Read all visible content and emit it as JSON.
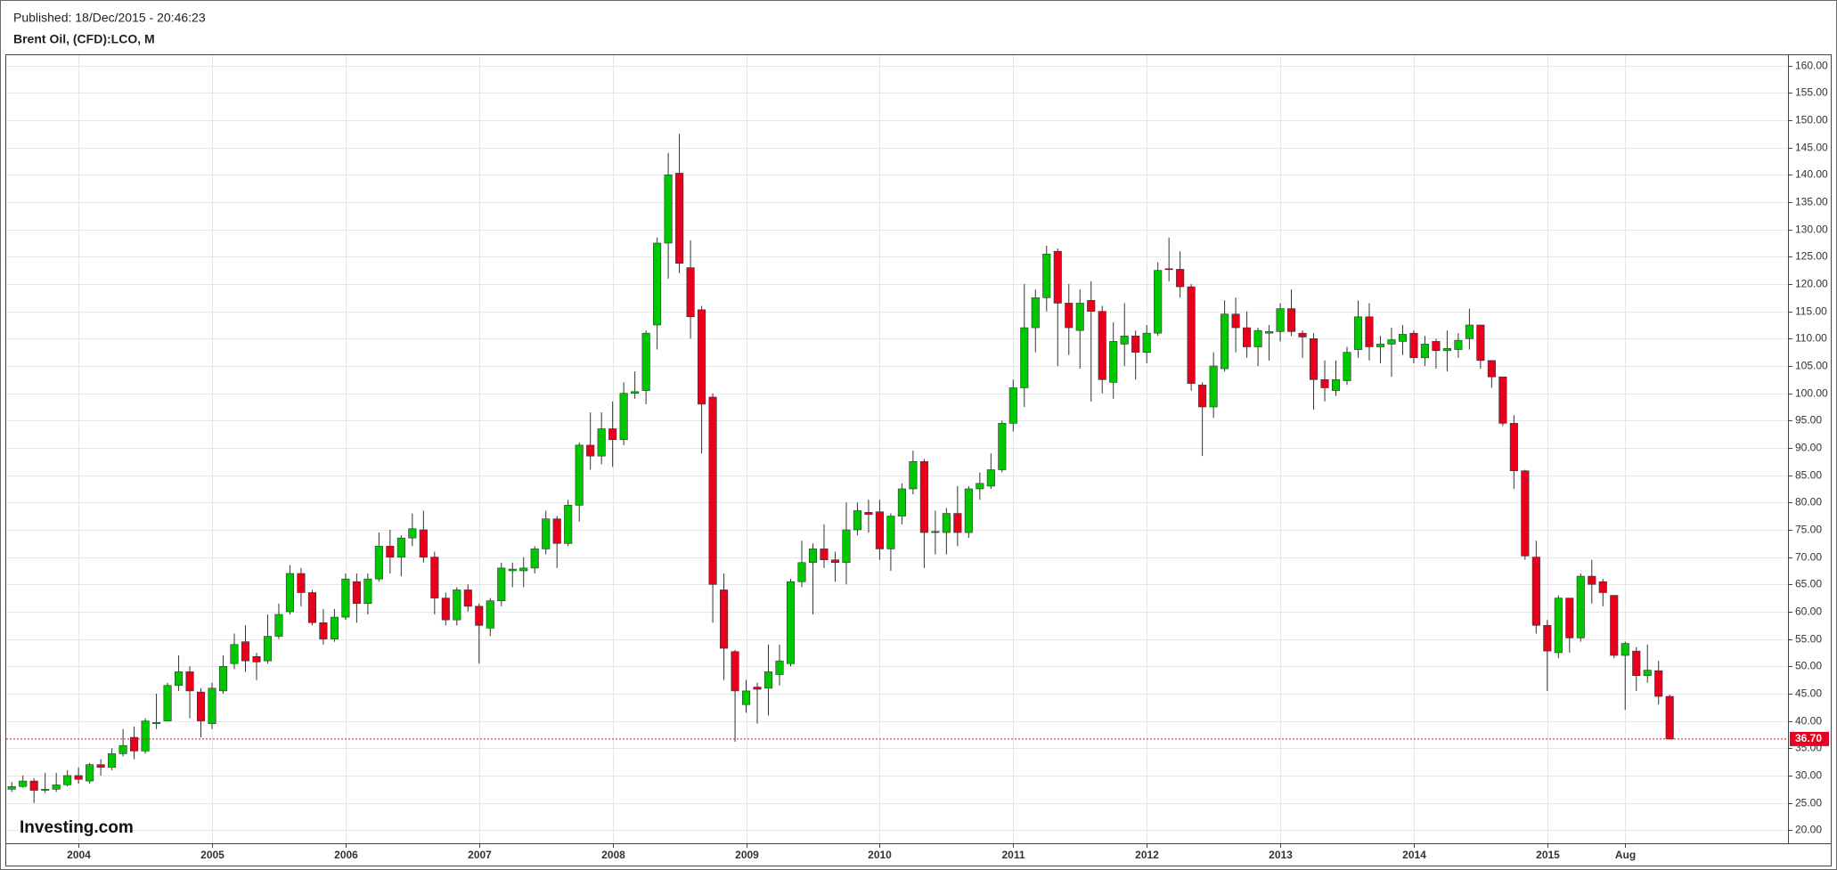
{
  "chart_data": {
    "type": "candlestick",
    "published": "Published: 18/Dec/2015 - 20:46:23",
    "title": "Brent Oil, (CFD):LCO, M",
    "logo": "Investing.com",
    "up_color": "#00c800",
    "down_color": "#e8001c",
    "ylim": [
      17.6,
      161.9
    ],
    "yticks": [
      {
        "value": 20,
        "label": "20.00"
      },
      {
        "value": 25,
        "label": "25.00"
      },
      {
        "value": 30,
        "label": "30.00"
      },
      {
        "value": 35,
        "label": "35.00"
      },
      {
        "value": 40,
        "label": "40.00"
      },
      {
        "value": 45,
        "label": "45.00"
      },
      {
        "value": 50,
        "label": "50.00"
      },
      {
        "value": 55,
        "label": "55.00"
      },
      {
        "value": 60,
        "label": "60.00"
      },
      {
        "value": 65,
        "label": "65.00"
      },
      {
        "value": 70,
        "label": "70.00"
      },
      {
        "value": 75,
        "label": "75.00"
      },
      {
        "value": 80,
        "label": "80.00"
      },
      {
        "value": 85,
        "label": "85.00"
      },
      {
        "value": 90,
        "label": "90.00"
      },
      {
        "value": 95,
        "label": "95.00"
      },
      {
        "value": 100,
        "label": "100.00"
      },
      {
        "value": 105,
        "label": "105.00"
      },
      {
        "value": 110,
        "label": "110.00"
      },
      {
        "value": 115,
        "label": "115.00"
      },
      {
        "value": 120,
        "label": "120.00"
      },
      {
        "value": 125,
        "label": "125.00"
      },
      {
        "value": 130,
        "label": "130.00"
      },
      {
        "value": 135,
        "label": "135.00"
      },
      {
        "value": 140,
        "label": "140.00"
      },
      {
        "value": 145,
        "label": "145.00"
      },
      {
        "value": 150,
        "label": "150.00"
      },
      {
        "value": 155,
        "label": "155.00"
      },
      {
        "value": 160,
        "label": "160.00"
      }
    ],
    "grid": true,
    "last_price": {
      "value": 36.7,
      "label": "36.70",
      "color": "#e8001c"
    },
    "categories": [
      null,
      null,
      null,
      null,
      null,
      null,
      "2004",
      null,
      null,
      null,
      null,
      null,
      null,
      null,
      null,
      null,
      null,
      null,
      "2005",
      null,
      null,
      null,
      null,
      null,
      null,
      null,
      null,
      null,
      null,
      null,
      "2006",
      null,
      null,
      null,
      null,
      null,
      null,
      null,
      null,
      null,
      null,
      null,
      "2007",
      null,
      null,
      null,
      null,
      null,
      null,
      null,
      null,
      null,
      null,
      null,
      "2008",
      null,
      null,
      null,
      null,
      null,
      null,
      null,
      null,
      null,
      null,
      null,
      "2009",
      null,
      null,
      null,
      null,
      null,
      null,
      null,
      null,
      null,
      null,
      null,
      "2010",
      null,
      null,
      null,
      null,
      null,
      null,
      null,
      null,
      null,
      null,
      null,
      "2011",
      null,
      null,
      null,
      null,
      null,
      null,
      null,
      null,
      null,
      null,
      null,
      "2012",
      null,
      null,
      null,
      null,
      null,
      null,
      null,
      null,
      null,
      null,
      null,
      "2013",
      null,
      null,
      null,
      null,
      null,
      null,
      null,
      null,
      null,
      null,
      null,
      "2014",
      null,
      null,
      null,
      null,
      null,
      null,
      null,
      null,
      null,
      null,
      null,
      "2015",
      null,
      null,
      null,
      null,
      null,
      null,
      "Aug",
      null,
      null,
      null,
      null
    ],
    "open": [
      27.5,
      28.0,
      29.0,
      27.3,
      27.5,
      28.3,
      30.0,
      29.0,
      32.0,
      31.5,
      34.0,
      37.0,
      34.5,
      39.5,
      40.0,
      46.5,
      49.0,
      45.3,
      39.5,
      45.5,
      50.5,
      54.5,
      51.8,
      51.0,
      55.5,
      60.0,
      67.0,
      63.5,
      58.0,
      55.0,
      59.0,
      65.5,
      61.5,
      66.0,
      72.0,
      70.0,
      73.5,
      75.0,
      70.0,
      62.5,
      58.5,
      64.0,
      61.0,
      57.0,
      62.0,
      67.5,
      67.5,
      68.0,
      71.5,
      77.0,
      72.5,
      79.5,
      90.5,
      88.5,
      93.5,
      91.5,
      100.0,
      100.5,
      112.5,
      127.5,
      140.3,
      123.0,
      115.3,
      99.3,
      64.0,
      52.7,
      43.0,
      46.2,
      46.0,
      48.5,
      50.5,
      65.5,
      69.0,
      71.5,
      69.5,
      69.0,
      75.0,
      78.2,
      78.3,
      71.5,
      77.5,
      82.5,
      87.5,
      74.7,
      74.5,
      78.0,
      74.5,
      82.5,
      83.0,
      86.0,
      94.5,
      101.0,
      112.0,
      117.5,
      126.0,
      116.5,
      111.5,
      117.0,
      115.0,
      102.0,
      109.0,
      110.5,
      107.5,
      111.0,
      122.8,
      122.7,
      119.5,
      101.5,
      97.5,
      104.5,
      114.5,
      112.0,
      108.5,
      111.0,
      111.3,
      115.5,
      111.0,
      110.0,
      102.5,
      100.5,
      102.3,
      108.0,
      114.0,
      108.5,
      109.0,
      109.5,
      111.0,
      106.5,
      109.5,
      107.8,
      108.0,
      110.0,
      112.5,
      106.0,
      103.0,
      94.5,
      85.8,
      70.0,
      57.5,
      52.5,
      62.5,
      55.2,
      66.5,
      65.5,
      63.0,
      52.0,
      52.8,
      48.3,
      49.2,
      44.5
    ],
    "high": [
      28.8,
      30.0,
      29.5,
      30.5,
      30.5,
      31.0,
      31.5,
      32.3,
      33.0,
      35.0,
      38.5,
      39.0,
      40.5,
      45.0,
      47.0,
      52.0,
      50.0,
      46.0,
      47.0,
      52.0,
      56.0,
      57.5,
      52.5,
      59.5,
      61.5,
      68.5,
      68.0,
      64.0,
      60.5,
      60.5,
      67.0,
      67.0,
      67.0,
      74.5,
      75.0,
      74.0,
      78.0,
      78.5,
      71.0,
      63.5,
      64.5,
      65.0,
      61.5,
      62.5,
      69.0,
      69.0,
      70.0,
      72.0,
      78.5,
      77.5,
      80.5,
      91.0,
      96.5,
      96.5,
      98.5,
      102.0,
      104.0,
      111.5,
      128.5,
      144.0,
      147.5,
      128.0,
      116.0,
      100.0,
      67.0,
      53.0,
      47.5,
      47.0,
      54.0,
      54.0,
      66.0,
      73.0,
      72.5,
      76.0,
      71.0,
      80.0,
      80.0,
      80.5,
      80.5,
      78.0,
      83.5,
      89.5,
      88.0,
      78.5,
      79.0,
      83.0,
      83.0,
      85.5,
      89.0,
      95.0,
      102.5,
      120.0,
      119.0,
      127.0,
      126.5,
      120.0,
      119.0,
      120.5,
      116.0,
      113.0,
      116.5,
      111.5,
      112.5,
      124.0,
      128.5,
      126.0,
      120.0,
      102.0,
      107.5,
      117.0,
      117.5,
      115.0,
      112.0,
      112.5,
      116.5,
      119.0,
      111.5,
      111.0,
      106.0,
      106.0,
      108.5,
      117.0,
      116.5,
      110.5,
      112.0,
      112.5,
      111.5,
      110.5,
      110.0,
      111.5,
      111.0,
      115.5,
      112.5,
      106.0,
      103.0,
      96.0,
      86.0,
      73.0,
      58.5,
      63.0,
      62.5,
      67.0,
      69.5,
      66.0,
      63.0,
      54.5,
      53.5,
      54.0,
      51.0,
      44.8
    ],
    "low": [
      27.0,
      27.8,
      25.0,
      26.8,
      27.0,
      28.0,
      28.5,
      28.5,
      30.0,
      31.0,
      33.5,
      33.0,
      34.0,
      38.5,
      40.0,
      45.5,
      40.5,
      37.0,
      38.5,
      45.0,
      49.5,
      49.0,
      47.5,
      50.5,
      55.0,
      59.5,
      61.0,
      57.5,
      54.0,
      54.5,
      58.5,
      58.0,
      59.5,
      65.5,
      67.0,
      66.5,
      72.0,
      69.0,
      59.5,
      57.5,
      57.5,
      60.0,
      50.5,
      55.5,
      61.0,
      64.5,
      64.5,
      67.0,
      70.5,
      68.0,
      72.0,
      76.5,
      86.0,
      87.0,
      86.5,
      90.5,
      99.0,
      98.0,
      108.0,
      121.0,
      122.0,
      110.0,
      89.0,
      58.0,
      47.5,
      36.2,
      41.5,
      39.5,
      41.0,
      46.5,
      50.0,
      64.5,
      59.5,
      68.0,
      65.5,
      65.0,
      74.0,
      74.5,
      69.5,
      67.5,
      76.0,
      81.5,
      68.0,
      70.5,
      70.5,
      72.0,
      73.5,
      80.5,
      82.5,
      85.5,
      93.0,
      97.5,
      107.5,
      115.0,
      105.0,
      107.0,
      104.5,
      98.5,
      100.0,
      99.0,
      105.0,
      102.5,
      105.5,
      110.5,
      120.5,
      117.5,
      100.5,
      88.5,
      95.5,
      104.0,
      107.5,
      106.5,
      105.0,
      106.0,
      109.5,
      110.5,
      106.5,
      97.0,
      98.5,
      99.5,
      101.5,
      106.5,
      106.0,
      105.5,
      103.0,
      107.0,
      105.5,
      105.0,
      104.5,
      104.0,
      106.5,
      108.0,
      104.5,
      101.0,
      94.0,
      82.5,
      69.5,
      56.0,
      45.5,
      51.5,
      52.5,
      54.5,
      61.5,
      61.0,
      51.5,
      42.0,
      45.5,
      47.0,
      43.0,
      36.6
    ],
    "close": [
      28.0,
      29.0,
      27.3,
      27.5,
      28.3,
      30.0,
      29.3,
      32.0,
      31.5,
      34.0,
      35.5,
      34.5,
      40.0,
      39.7,
      46.5,
      49.0,
      45.5,
      40.0,
      46.0,
      50.0,
      54.0,
      51.0,
      50.8,
      55.5,
      59.5,
      67.0,
      63.5,
      58.0,
      55.0,
      59.0,
      66.0,
      61.5,
      66.0,
      72.0,
      70.0,
      73.5,
      75.2,
      70.0,
      62.5,
      58.5,
      64.0,
      61.0,
      57.5,
      62.0,
      68.0,
      67.8,
      68.0,
      71.5,
      77.0,
      72.5,
      79.5,
      90.5,
      88.5,
      93.5,
      91.5,
      100.0,
      100.3,
      111.0,
      127.5,
      140.0,
      123.8,
      114.0,
      98.0,
      65.0,
      53.3,
      45.5,
      45.5,
      45.8,
      49.0,
      51.0,
      65.5,
      69.0,
      71.5,
      69.5,
      69.0,
      75.0,
      78.5,
      77.8,
      71.5,
      77.5,
      82.5,
      87.5,
      74.5,
      74.5,
      78.0,
      74.5,
      82.5,
      83.5,
      86.0,
      94.5,
      101.0,
      112.0,
      117.5,
      125.5,
      116.5,
      112.0,
      116.5,
      115.0,
      102.5,
      109.5,
      110.5,
      107.5,
      111.0,
      122.5,
      122.7,
      119.5,
      101.8,
      97.5,
      105.0,
      114.5,
      112.0,
      108.5,
      111.5,
      111.3,
      115.5,
      111.3,
      110.3,
      102.5,
      101.0,
      102.5,
      107.5,
      114.0,
      108.5,
      109.0,
      109.8,
      110.8,
      106.5,
      109.0,
      107.8,
      108.2,
      109.7,
      112.5,
      106.0,
      103.0,
      94.5,
      85.8,
      70.2,
      57.5,
      52.8,
      62.5,
      55.2,
      66.5,
      65.0,
      63.5,
      52.0,
      54.2,
      48.3,
      49.3,
      44.5,
      36.7
    ]
  }
}
